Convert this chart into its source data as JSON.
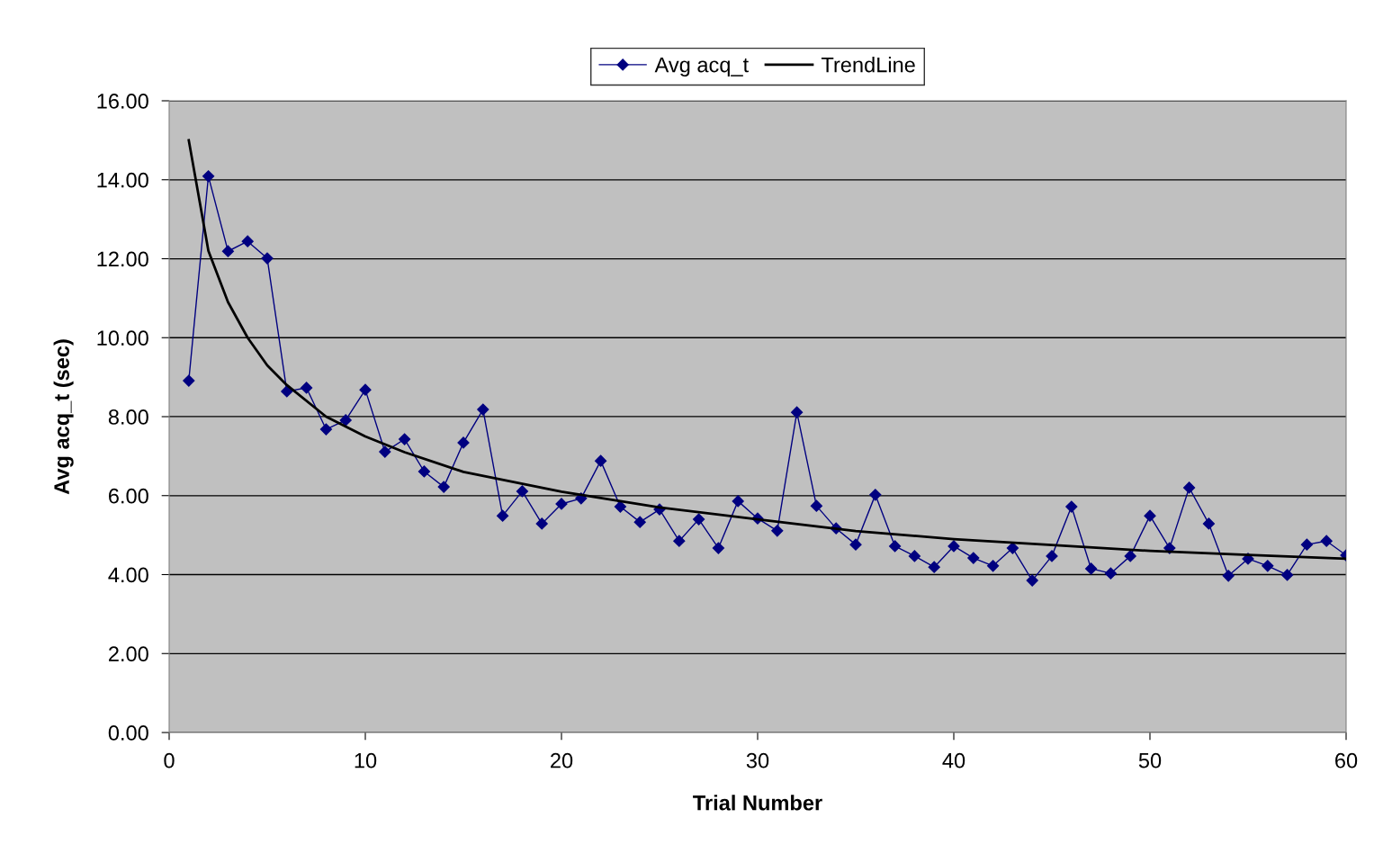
{
  "chart_data": {
    "type": "line",
    "xlabel": "Trial Number",
    "ylabel": "Avg acq_t (sec)",
    "xlim": [
      0,
      60
    ],
    "xticks": [
      0,
      10,
      20,
      30,
      40,
      50,
      60
    ],
    "ylim": [
      0,
      16
    ],
    "yticks": [
      {
        "value": 0,
        "label": "0.00"
      },
      {
        "value": 2,
        "label": "2.00"
      },
      {
        "value": 4,
        "label": "4.00"
      },
      {
        "value": 6,
        "label": "6.00"
      },
      {
        "value": 8,
        "label": "8.00"
      },
      {
        "value": 10,
        "label": "10.00"
      },
      {
        "value": 12,
        "label": "12.00"
      },
      {
        "value": 14,
        "label": "14.00"
      },
      {
        "value": 16,
        "label": "16.00"
      }
    ],
    "grid": "y",
    "legend": "top",
    "series": [
      {
        "name": "Avg acq_t",
        "color": "#000080",
        "marker": "diamond",
        "x": [
          1,
          2,
          3,
          4,
          5,
          6,
          7,
          8,
          9,
          10,
          11,
          12,
          13,
          14,
          15,
          16,
          17,
          18,
          19,
          20,
          21,
          22,
          23,
          24,
          25,
          26,
          27,
          28,
          29,
          30,
          31,
          32,
          33,
          34,
          35,
          36,
          37,
          38,
          39,
          40,
          41,
          42,
          43,
          44,
          45,
          46,
          47,
          48,
          49,
          50,
          51,
          52,
          53,
          54,
          55,
          56,
          57,
          58,
          59,
          60
        ],
        "values": [
          8.91,
          14.09,
          12.19,
          12.44,
          12.01,
          8.64,
          8.73,
          7.68,
          7.91,
          8.68,
          7.11,
          7.43,
          6.61,
          6.22,
          7.34,
          8.18,
          5.49,
          6.11,
          5.29,
          5.79,
          5.93,
          6.88,
          5.72,
          5.33,
          5.65,
          4.85,
          5.4,
          4.67,
          5.86,
          5.42,
          5.11,
          8.11,
          5.74,
          5.17,
          4.76,
          6.02,
          4.72,
          4.47,
          4.19,
          4.72,
          4.42,
          4.22,
          4.67,
          3.85,
          4.47,
          5.72,
          4.15,
          4.03,
          4.47,
          5.49,
          4.67,
          6.2,
          5.29,
          3.97,
          4.4,
          4.22,
          3.99,
          4.76,
          4.85,
          4.49
        ]
      },
      {
        "name": "TrendLine",
        "color": "#000000",
        "marker": "none",
        "x": [
          1,
          2,
          3,
          4,
          5,
          6,
          8,
          10,
          12,
          15,
          20,
          25,
          30,
          35,
          40,
          45,
          50,
          55,
          60
        ],
        "values": [
          15.0,
          12.2,
          10.9,
          10.0,
          9.3,
          8.8,
          8.0,
          7.5,
          7.1,
          6.6,
          6.1,
          5.7,
          5.4,
          5.1,
          4.9,
          4.75,
          4.6,
          4.5,
          4.4
        ]
      }
    ]
  }
}
